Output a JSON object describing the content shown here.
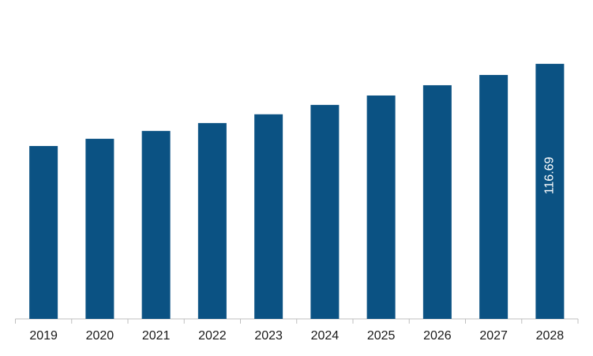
{
  "chart_data": {
    "type": "bar",
    "categories": [
      "2019",
      "2020",
      "2021",
      "2022",
      "2023",
      "2024",
      "2025",
      "2026",
      "2027",
      "2028"
    ],
    "values": [
      79.1,
      82.4,
      86.0,
      89.6,
      93.6,
      97.9,
      102.2,
      106.9,
      111.6,
      116.69
    ],
    "value_labels": [
      null,
      null,
      null,
      null,
      null,
      null,
      null,
      null,
      null,
      "116.69"
    ],
    "color": "#0b5283",
    "ylim": [
      0,
      130
    ]
  }
}
